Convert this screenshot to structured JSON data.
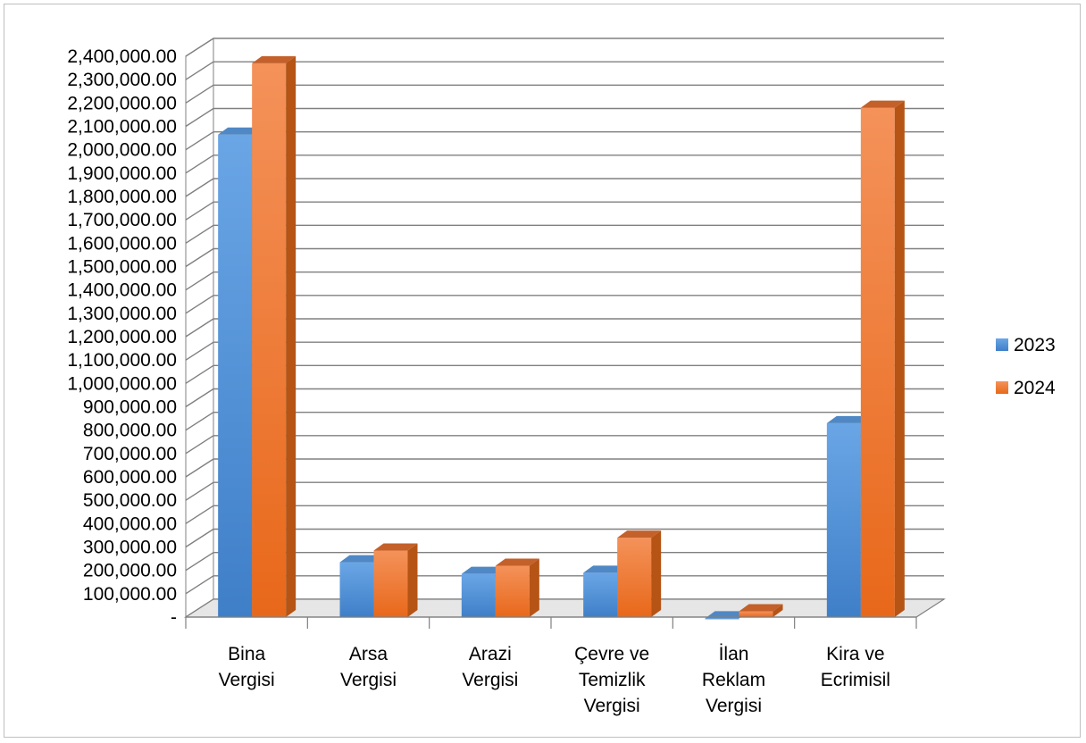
{
  "chart_data": {
    "type": "bar",
    "title": "",
    "xlabel": "",
    "ylabel": "",
    "ylim": [
      0,
      2400000
    ],
    "grid": true,
    "legend_position": "right",
    "y_tick_labels": [
      "-",
      "100,000.00",
      "200,000.00",
      "300,000.00",
      "400,000.00",
      "500,000.00",
      "600,000.00",
      "700,000.00",
      "800,000.00",
      "900,000.00",
      "1,000,000.00",
      "1,100,000.00",
      "1,200,000.00",
      "1,300,000.00",
      "1,400,000.00",
      "1,500,000.00",
      "1,600,000.00",
      "1,700,000.00",
      "1,800,000.00",
      "1,900,000.00",
      "2,000,000.00",
      "2,100,000.00",
      "2,200,000.00",
      "2,300,000.00",
      "2,400,000.00"
    ],
    "categories": [
      [
        "Bina",
        "Vergisi"
      ],
      [
        "Arsa",
        "Vergisi"
      ],
      [
        "Arazi",
        "Vergisi"
      ],
      [
        "Çevre ve",
        "Temizlik",
        "Vergisi"
      ],
      [
        "İlan",
        "Reklam",
        "Vergisi"
      ],
      [
        "Kira ve",
        "Ecrimisil"
      ]
    ],
    "series": [
      {
        "name": "2023",
        "color": "#4a8fd9",
        "values": [
          2080000,
          250000,
          200000,
          205000,
          10000,
          845000
        ]
      },
      {
        "name": "2024",
        "color": "#f07b26",
        "values": [
          2385000,
          300000,
          235000,
          355000,
          40000,
          2195000
        ]
      }
    ]
  }
}
